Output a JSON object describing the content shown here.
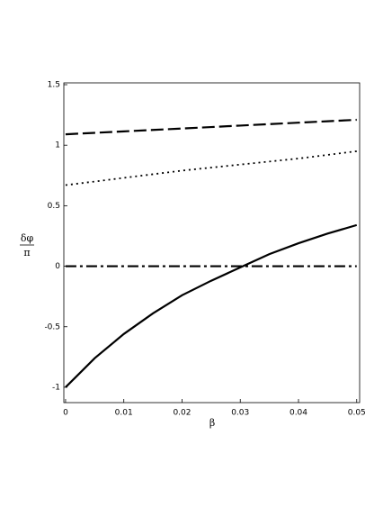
{
  "chart_data": {
    "type": "line",
    "xlabel": "β",
    "ylabel": {
      "numerator": "δφ",
      "denominator": "π"
    },
    "x": [
      0,
      0.005,
      0.01,
      0.015,
      0.02,
      0.025,
      0.03,
      0.035,
      0.04,
      0.045,
      0.05
    ],
    "series": [
      {
        "color": "#000000",
        "style": "dashed",
        "values": [
          1.09,
          1.102,
          1.114,
          1.126,
          1.138,
          1.15,
          1.162,
          1.174,
          1.186,
          1.198,
          1.21
        ]
      },
      {
        "color": "#000000",
        "style": "dotted",
        "values": [
          0.67,
          0.7,
          0.73,
          0.76,
          0.79,
          0.815,
          0.84,
          0.865,
          0.89,
          0.92,
          0.95
        ]
      },
      {
        "color": "#000000",
        "style": "dashdot",
        "values": [
          0,
          0,
          0,
          0,
          0,
          0,
          0,
          0,
          0,
          0,
          0
        ]
      },
      {
        "color": "#000000",
        "style": "solid",
        "values": [
          -1,
          -0.76,
          -0.56,
          -0.39,
          -0.24,
          -0.12,
          -0.01,
          0.1,
          0.19,
          0.27,
          0.34
        ]
      }
    ],
    "xlim": [
      -0.0003,
      0.0505
    ],
    "ylim": [
      -1.127,
      1.515
    ],
    "xticks": [
      0,
      0.01,
      0.02,
      0.03,
      0.04,
      0.05
    ],
    "yticks": [
      -1,
      -0.5,
      0,
      0.5,
      1,
      1.5
    ],
    "grid": false
  }
}
